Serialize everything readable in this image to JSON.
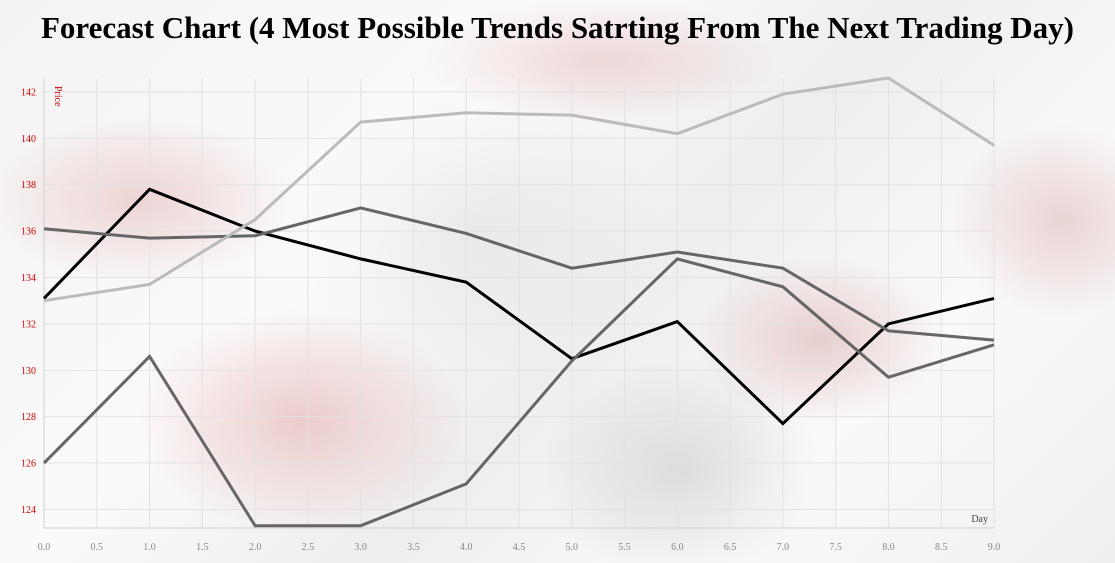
{
  "chart_data": {
    "type": "line",
    "title": "Forecast Chart (4 Most Possible Trends Satrting From The Next Trading Day)",
    "xlabel": "Day",
    "ylabel": "Price",
    "xlim": [
      0,
      9
    ],
    "ylim": [
      123.2,
      142.6
    ],
    "x_ticks": [
      0,
      0.5,
      1,
      1.5,
      2,
      2.5,
      3,
      3.5,
      4,
      4.5,
      5,
      5.5,
      6,
      6.5,
      7,
      7.5,
      8,
      8.5,
      9
    ],
    "x_tick_labels": [
      "0.0",
      "0.5",
      "1.0",
      "1.5",
      "2.0",
      "2.5",
      "3.0",
      "3.5",
      "4.0",
      "4.5",
      "5.0",
      "5.5",
      "6.0",
      "6.5",
      "7.0",
      "7.5",
      "8.0",
      "8.5",
      "9.0"
    ],
    "y_ticks": [
      124,
      126,
      128,
      130,
      132,
      134,
      136,
      138,
      140,
      142
    ],
    "y_tick_labels": [
      "124",
      "126",
      "128",
      "130",
      "132",
      "134",
      "136",
      "138",
      "140",
      "142"
    ],
    "grid": true,
    "x": [
      0,
      1,
      2,
      3,
      4,
      5,
      6,
      7,
      8,
      9
    ],
    "series": [
      {
        "color": "#000000",
        "values": [
          133.1,
          137.8,
          136.0,
          134.8,
          133.8,
          130.5,
          132.1,
          127.7,
          132.0,
          133.1
        ]
      },
      {
        "color": "#666666",
        "values": [
          136.1,
          135.7,
          135.8,
          137.0,
          135.9,
          134.4,
          135.1,
          134.4,
          131.7,
          131.3
        ]
      },
      {
        "color": "#666666",
        "values": [
          126.0,
          130.6,
          123.3,
          123.3,
          125.1,
          130.4,
          134.8,
          133.6,
          129.7,
          131.1
        ]
      },
      {
        "color": "#bbbbbb",
        "values": [
          133.0,
          133.7,
          136.5,
          140.7,
          141.1,
          141.0,
          140.2,
          141.9,
          142.6,
          139.7
        ]
      }
    ],
    "colors": {
      "tick_label": "#cc0000",
      "x_tick_label": "#888888",
      "grid": "#e2e2e2",
      "axis": "#d0d0d0"
    }
  }
}
